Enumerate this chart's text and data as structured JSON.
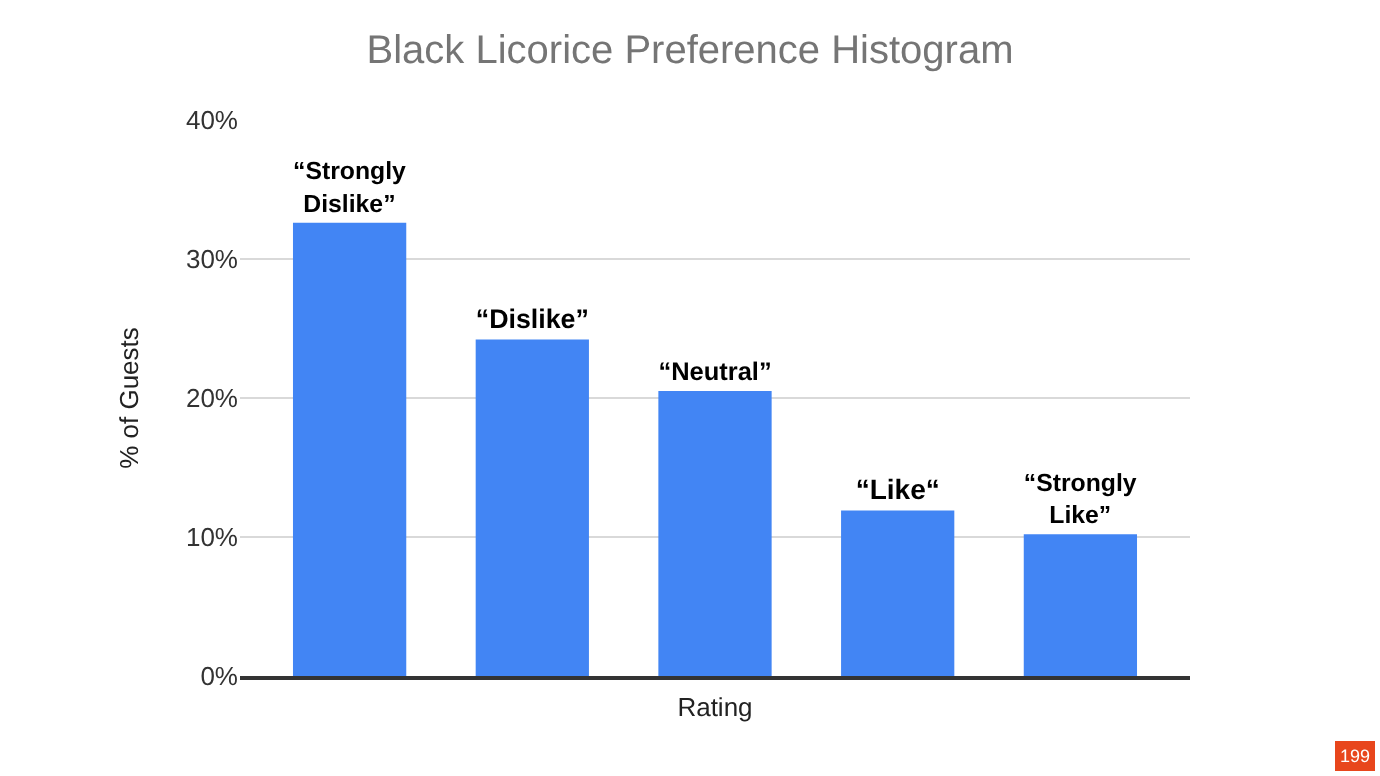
{
  "chart_data": {
    "type": "bar",
    "title": "Black Licorice Preference Histogram",
    "xlabel": "Rating",
    "ylabel": "% of Guests",
    "categories": [
      "“Strongly\nDislike”",
      "“Dislike”",
      "“Neutral”",
      "“Like“",
      "“Strongly\nLike”"
    ],
    "values": [
      32.6,
      24.2,
      20.5,
      11.9,
      10.2
    ],
    "color": "#4285f4",
    "ylim": [
      0,
      40
    ],
    "yticks": [
      {
        "value": 0,
        "label": "0%"
      },
      {
        "value": 10,
        "label": "10%"
      },
      {
        "value": 20,
        "label": "20%"
      },
      {
        "value": 30,
        "label": "30%"
      },
      {
        "value": 40,
        "label": "40%"
      }
    ],
    "grid": "y",
    "annotations": [
      "199"
    ]
  }
}
